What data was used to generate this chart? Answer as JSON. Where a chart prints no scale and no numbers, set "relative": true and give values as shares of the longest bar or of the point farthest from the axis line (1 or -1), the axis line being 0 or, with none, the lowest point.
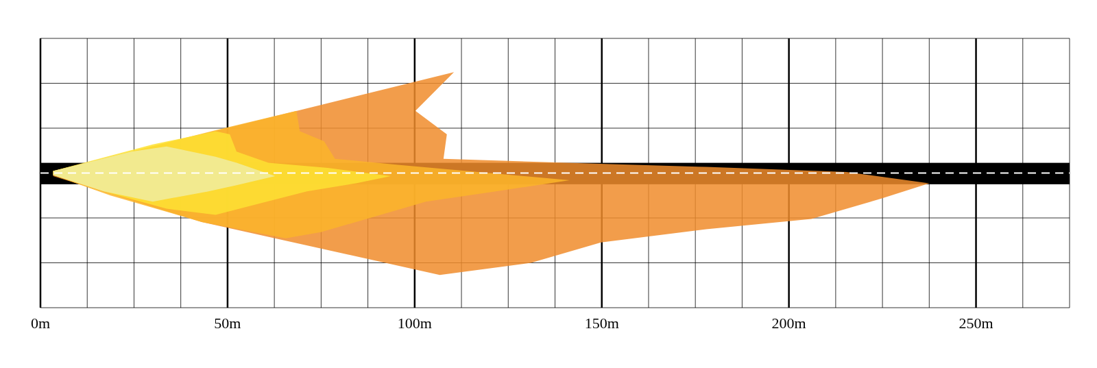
{
  "chart_data": {
    "type": "area",
    "relative": true,
    "xlim": [
      0,
      275
    ],
    "xticks": [
      {
        "value": 0,
        "label": "0m"
      },
      {
        "value": 12.5,
        "label": null
      },
      {
        "value": 25,
        "label": null
      },
      {
        "value": 37.5,
        "label": null
      },
      {
        "value": 50,
        "label": "50m"
      },
      {
        "value": 62.5,
        "label": null
      },
      {
        "value": 75,
        "label": null
      },
      {
        "value": 87.5,
        "label": null
      },
      {
        "value": 100,
        "label": "100m"
      },
      {
        "value": 112.5,
        "label": null
      },
      {
        "value": 125,
        "label": null
      },
      {
        "value": 137.5,
        "label": null
      },
      {
        "value": 150,
        "label": "150m"
      },
      {
        "value": 162.5,
        "label": null
      },
      {
        "value": 175,
        "label": null
      },
      {
        "value": 187.5,
        "label": null
      },
      {
        "value": 200,
        "label": "200m"
      },
      {
        "value": 212.5,
        "label": null
      },
      {
        "value": 225,
        "label": null
      },
      {
        "value": 237.5,
        "label": null
      },
      {
        "value": 250,
        "label": "250m"
      },
      {
        "value": 262.5,
        "label": null
      }
    ],
    "grid": true,
    "bands": [
      {
        "axis": "y",
        "from": -0.11,
        "to": 0.1,
        "color": "#000000"
      }
    ],
    "ref_lines": [
      {
        "axis": "y",
        "value": 0,
        "color": "#ffffff",
        "line_style": "dashed"
      }
    ],
    "series": [
      {
        "color": "#f08c2c",
        "x": [
          3.4,
          110.5,
          100.2,
          108.6,
          107.7,
          140.4,
          177.9,
          215.4,
          237.5,
          224.7,
          206.0,
          177.9,
          149.8,
          131.1,
          106.7,
          43.1,
          3.4
        ],
        "values": [
          0.02,
          0.99,
          0.61,
          0.38,
          0.14,
          0.1,
          0.06,
          0.01,
          -0.1,
          -0.25,
          -0.45,
          -0.55,
          -0.68,
          -0.88,
          -1,
          -0.48,
          -0.03
        ]
      },
      {
        "color": "#fbb52a",
        "x": [
          3.4,
          46.8,
          68.4,
          69.3,
          75.8,
          78.7,
          95.5,
          141.4,
          121.7,
          103.0,
          74.9,
          65.5,
          43.1,
          18.7,
          3.4
        ],
        "values": [
          0.02,
          0.42,
          0.61,
          0.41,
          0.31,
          0.14,
          0.08,
          -0.07,
          -0.18,
          -0.28,
          -0.58,
          -0.64,
          -0.48,
          -0.22,
          -0.02
        ]
      },
      {
        "color": "#fde232",
        "x": [
          3.4,
          30.0,
          46.8,
          50.6,
          52.4,
          60.9,
          76.8,
          93.6,
          84.3,
          71.2,
          56.2,
          46.8,
          33.7,
          18.7,
          3.4
        ],
        "values": [
          0.02,
          0.28,
          0.41,
          0.38,
          0.21,
          0.1,
          0.05,
          -0.03,
          -0.1,
          -0.18,
          -0.32,
          -0.41,
          -0.35,
          -0.2,
          -0.02
        ]
      },
      {
        "color": "#f0eca0",
        "x": [
          3.4,
          24.3,
          33.7,
          46.8,
          52.4,
          62.7,
          52.4,
          44.9,
          30.0,
          16.9,
          3.4
        ],
        "values": [
          0.02,
          0.21,
          0.26,
          0.16,
          0.1,
          -0.03,
          -0.12,
          -0.18,
          -0.28,
          -0.18,
          -0.02
        ]
      }
    ]
  }
}
